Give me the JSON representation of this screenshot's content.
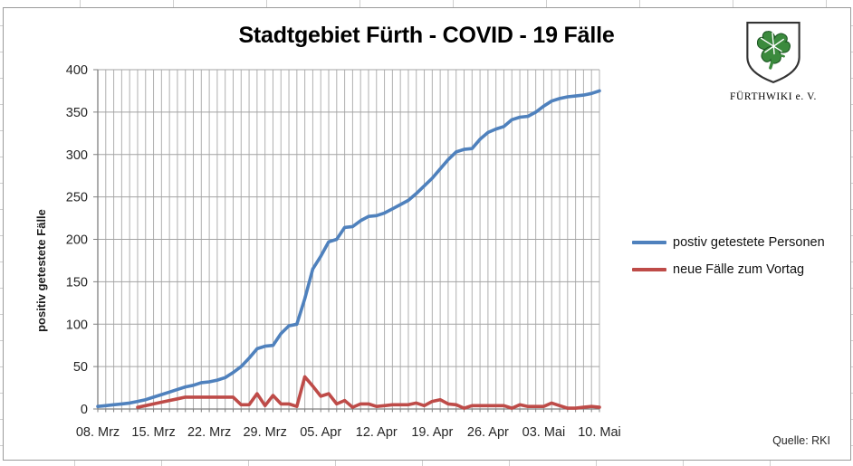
{
  "title": "Stadtgebiet Fürth - COVID - 19 Fälle",
  "source_note": "Quelle: RKI",
  "logo": {
    "caption": "FÜRTHWIKI e. V.",
    "clover_color": "#3b8a3d"
  },
  "chart_data": {
    "type": "line",
    "title": "Stadtgebiet Fürth - COVID - 19 Fälle",
    "xlabel": "",
    "ylabel": "positiv getestete Fälle",
    "ylim": [
      0,
      400
    ],
    "ytick_step": 50,
    "grid": "daily vertical gridlines + horizontal gridlines every 50",
    "legend_position": "right",
    "x_tick_every": 7,
    "x_tick_labels": [
      "08. Mrz",
      "15. Mrz",
      "22. Mrz",
      "29. Mrz",
      "05. Apr",
      "12. Apr",
      "19. Apr",
      "26. Apr",
      "03. Mai",
      "10. Mai"
    ],
    "dates": [
      "08.03",
      "09.03",
      "10.03",
      "11.03",
      "12.03",
      "13.03",
      "14.03",
      "15.03",
      "16.03",
      "17.03",
      "18.03",
      "19.03",
      "20.03",
      "21.03",
      "22.03",
      "23.03",
      "24.03",
      "25.03",
      "26.03",
      "27.03",
      "28.03",
      "29.03",
      "30.03",
      "31.03",
      "01.04",
      "02.04",
      "03.04",
      "04.04",
      "05.04",
      "06.04",
      "07.04",
      "08.04",
      "09.04",
      "10.04",
      "11.04",
      "12.04",
      "13.04",
      "14.04",
      "15.04",
      "16.04",
      "17.04",
      "18.04",
      "19.04",
      "20.04",
      "21.04",
      "22.04",
      "23.04",
      "24.04",
      "25.04",
      "26.04",
      "27.04",
      "28.04",
      "29.04",
      "30.04",
      "01.05",
      "02.05",
      "03.05",
      "04.05",
      "05.05",
      "06.05",
      "07.05",
      "08.05",
      "09.05",
      "10.05"
    ],
    "series": [
      {
        "name": "postiv getestete  Personen",
        "color": "#4F81BD",
        "values": [
          3,
          4,
          5,
          6,
          7,
          9,
          11,
          14,
          17,
          20,
          23,
          26,
          28,
          31,
          32,
          34,
          37,
          43,
          50,
          60,
          71,
          74,
          75,
          89,
          98,
          100,
          130,
          165,
          180,
          197,
          200,
          214,
          215,
          222,
          227,
          228,
          231,
          236,
          241,
          246,
          254,
          263,
          272,
          283,
          294,
          303,
          306,
          307,
          318,
          326,
          330,
          333,
          341,
          344,
          345,
          350,
          357,
          363,
          366,
          368,
          369,
          370,
          372,
          375
        ]
      },
      {
        "name": "neue Fälle zum Vortag",
        "color": "#BE4B48",
        "values": [
          null,
          null,
          null,
          null,
          null,
          2,
          4,
          6,
          8,
          10,
          12,
          14,
          14,
          14,
          14,
          14,
          14,
          14,
          5,
          5,
          18,
          4,
          16,
          6,
          6,
          3,
          38,
          27,
          15,
          18,
          6,
          10,
          2,
          6,
          6,
          3,
          4,
          5,
          5,
          5,
          7,
          4,
          9,
          11,
          6,
          5,
          1,
          4,
          4,
          4,
          4,
          4,
          1,
          5,
          3,
          3,
          3,
          7,
          4,
          1,
          1,
          2,
          3,
          2
        ]
      }
    ]
  }
}
